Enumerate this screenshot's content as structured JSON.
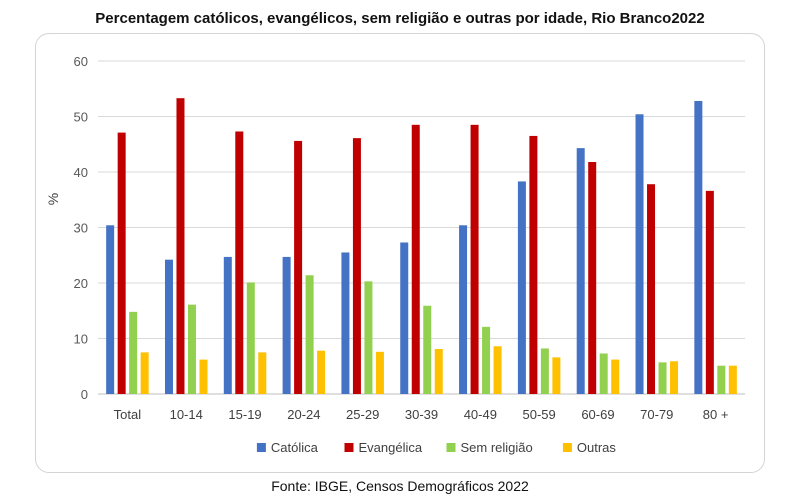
{
  "chart_data": {
    "type": "bar",
    "title": "Percentagem católicos, evangélicos, sem religião e outras por idade, Rio Branco2022",
    "xlabel": "",
    "ylabel": "%",
    "ylim": [
      0,
      60
    ],
    "yticks": [
      0,
      10,
      20,
      30,
      40,
      50,
      60
    ],
    "grid": true,
    "legend": "bottom",
    "categories": [
      "Total",
      "10-14",
      "15-19",
      "20-24",
      "25-29",
      "30-39",
      "40-49",
      "50-59",
      "60-69",
      "70-79",
      "80 +"
    ],
    "series": [
      {
        "name": "Católica",
        "color": "#4472C4",
        "values": [
          30.4,
          24.2,
          24.7,
          24.7,
          25.5,
          27.3,
          30.4,
          38.3,
          44.3,
          50.4,
          52.8
        ]
      },
      {
        "name": "Evangélica",
        "color": "#C00000",
        "values": [
          47.1,
          53.3,
          47.3,
          45.6,
          46.1,
          48.5,
          48.5,
          46.5,
          41.8,
          37.8,
          36.6
        ]
      },
      {
        "name": "Sem religião",
        "color": "#92D050",
        "values": [
          14.8,
          16.1,
          20.1,
          21.4,
          20.3,
          15.9,
          12.1,
          8.2,
          7.3,
          5.7,
          5.1
        ]
      },
      {
        "name": "Outras",
        "color": "#FFC000",
        "values": [
          7.5,
          6.2,
          7.5,
          7.8,
          7.6,
          8.1,
          8.6,
          6.6,
          6.2,
          5.9,
          5.1
        ]
      }
    ]
  },
  "source": "Fonte: IBGE, Censos Demográficos 2022"
}
